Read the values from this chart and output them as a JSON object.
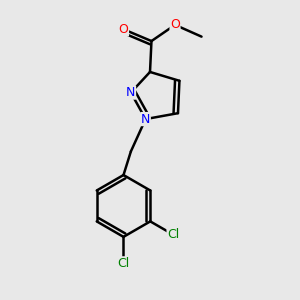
{
  "bg_color": "#e8e8e8",
  "bond_color": "#000000",
  "bond_width": 1.8,
  "atom_colors": {
    "N": "#0000ff",
    "O": "#ff0000",
    "Cl": "#008000",
    "C": "#000000"
  },
  "font_size": 9,
  "small_font_size": 8.5,
  "xlim": [
    0,
    10
  ],
  "ylim": [
    0,
    10
  ]
}
